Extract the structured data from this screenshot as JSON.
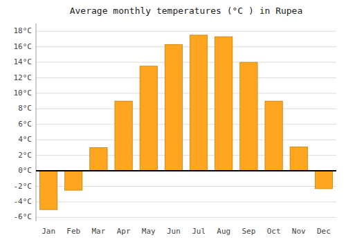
{
  "chart_data": {
    "type": "bar",
    "title": "Average monthly temperatures (°C ) in Rupea",
    "categories": [
      "Jan",
      "Feb",
      "Mar",
      "Apr",
      "May",
      "Jun",
      "Jul",
      "Aug",
      "Sep",
      "Oct",
      "Nov",
      "Dec"
    ],
    "values": [
      -5.0,
      -2.5,
      3.0,
      9.0,
      13.5,
      16.3,
      17.5,
      17.3,
      14.0,
      9.0,
      3.1,
      -2.3
    ],
    "color": "#FFA520",
    "ylim": [
      -6.5,
      19
    ],
    "yticks": [
      {
        "value": -6,
        "label": "-6°C"
      },
      {
        "value": -4,
        "label": "-4°C"
      },
      {
        "value": -2,
        "label": "-2°C"
      },
      {
        "value": 0,
        "label": "0°C"
      },
      {
        "value": 2,
        "label": "2°C"
      },
      {
        "value": 4,
        "label": "4°C"
      },
      {
        "value": 6,
        "label": "6°C"
      },
      {
        "value": 8,
        "label": "8°C"
      },
      {
        "value": 10,
        "label": "10°C"
      },
      {
        "value": 12,
        "label": "12°C"
      },
      {
        "value": 14,
        "label": "14°C"
      },
      {
        "value": 16,
        "label": "16°C"
      },
      {
        "value": 18,
        "label": "18°C"
      }
    ],
    "grid": true
  }
}
